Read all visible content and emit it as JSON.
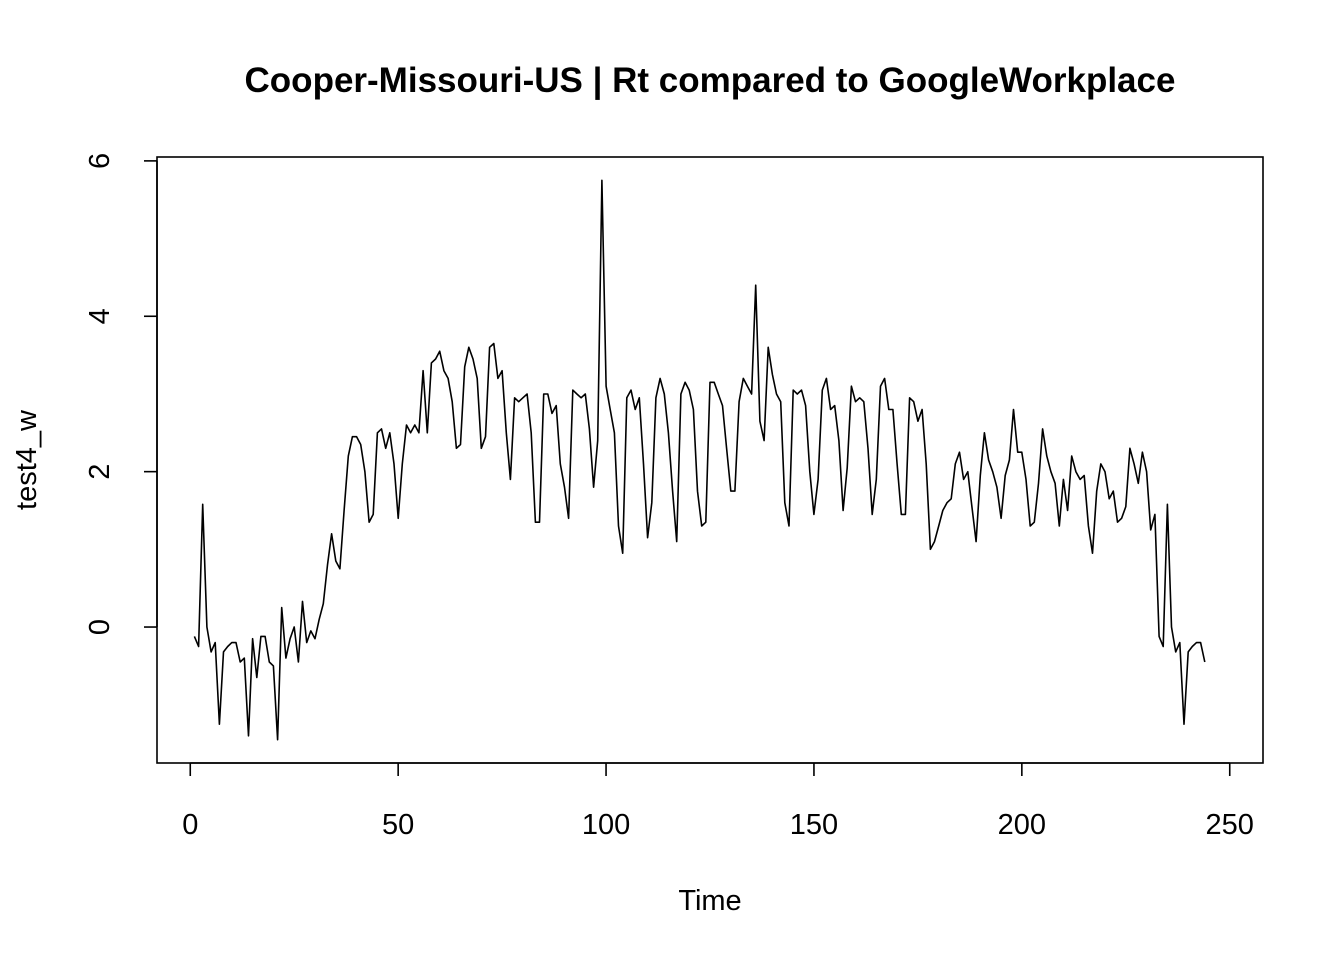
{
  "chart_data": {
    "type": "line",
    "title": "Cooper-Missouri-US | Rt compared to GoogleWorkplace",
    "xlabel": "Time",
    "ylabel": "test4_w",
    "xlim": [
      -8,
      258
    ],
    "ylim": [
      -1.75,
      6.05
    ],
    "x_ticks": [
      0,
      50,
      100,
      150,
      200,
      250
    ],
    "y_ticks": [
      0,
      2,
      4,
      6
    ],
    "grid": false,
    "legend": "none",
    "x_start": 1,
    "colors": {
      "line": "#000000"
    },
    "y": [
      -0.12,
      -0.25,
      1.58,
      0.0,
      -0.32,
      -0.2,
      -1.25,
      -0.32,
      -0.25,
      -0.2,
      -0.2,
      -0.45,
      -0.4,
      -1.4,
      -0.15,
      -0.65,
      -0.12,
      -0.12,
      -0.45,
      -0.5,
      -1.45,
      0.25,
      -0.4,
      -0.15,
      0.0,
      -0.45,
      0.33,
      -0.2,
      -0.05,
      -0.15,
      0.1,
      0.3,
      0.8,
      1.2,
      0.85,
      0.75,
      1.5,
      2.2,
      2.45,
      2.45,
      2.35,
      2.0,
      1.35,
      1.45,
      2.5,
      2.55,
      2.3,
      2.5,
      2.1,
      1.4,
      2.1,
      2.6,
      2.5,
      2.6,
      2.5,
      3.3,
      2.5,
      3.4,
      3.45,
      3.55,
      3.3,
      3.2,
      2.9,
      2.3,
      2.35,
      3.35,
      3.6,
      3.45,
      3.2,
      2.3,
      2.45,
      3.6,
      3.65,
      3.2,
      3.3,
      2.5,
      1.9,
      2.95,
      2.9,
      2.95,
      3.0,
      2.5,
      1.35,
      1.35,
      3.0,
      3.0,
      2.75,
      2.85,
      2.1,
      1.8,
      1.4,
      3.05,
      3.0,
      2.95,
      3.0,
      2.55,
      1.8,
      2.4,
      5.75,
      3.1,
      2.8,
      2.5,
      1.3,
      0.95,
      2.95,
      3.05,
      2.8,
      2.95,
      2.1,
      1.15,
      1.6,
      2.95,
      3.2,
      3.0,
      2.5,
      1.75,
      1.1,
      3.0,
      3.15,
      3.05,
      2.8,
      1.75,
      1.3,
      1.35,
      3.15,
      3.15,
      3.0,
      2.85,
      2.3,
      1.75,
      1.75,
      2.9,
      3.2,
      3.1,
      3.0,
      4.4,
      2.65,
      2.4,
      3.6,
      3.25,
      3.0,
      2.9,
      1.6,
      1.3,
      3.05,
      3.0,
      3.05,
      2.85,
      2.0,
      1.45,
      1.9,
      3.05,
      3.2,
      2.8,
      2.85,
      2.4,
      1.5,
      2.05,
      3.1,
      2.9,
      2.95,
      2.9,
      2.3,
      1.45,
      1.9,
      3.1,
      3.2,
      2.8,
      2.8,
      2.1,
      1.45,
      1.45,
      2.95,
      2.9,
      2.65,
      2.8,
      2.1,
      1.0,
      1.1,
      1.3,
      1.5,
      1.6,
      1.65,
      2.1,
      2.25,
      1.9,
      2.0,
      1.55,
      1.1,
      1.95,
      2.5,
      2.15,
      2.0,
      1.8,
      1.4,
      1.95,
      2.15,
      2.8,
      2.25,
      2.25,
      1.9,
      1.3,
      1.35,
      1.85,
      2.55,
      2.2,
      2.0,
      1.85,
      1.3,
      1.9,
      1.5,
      2.2,
      2.0,
      1.9,
      1.95,
      1.3,
      0.95,
      1.75,
      2.1,
      2.0,
      1.65,
      1.75,
      1.35,
      1.4,
      1.55,
      2.3,
      2.1,
      1.85,
      2.25,
      2.0,
      1.25,
      1.45,
      -0.12,
      -0.25,
      1.58,
      0.0,
      -0.32,
      -0.2,
      -1.25,
      -0.32,
      -0.25,
      -0.2,
      -0.2,
      -0.45
    ]
  }
}
